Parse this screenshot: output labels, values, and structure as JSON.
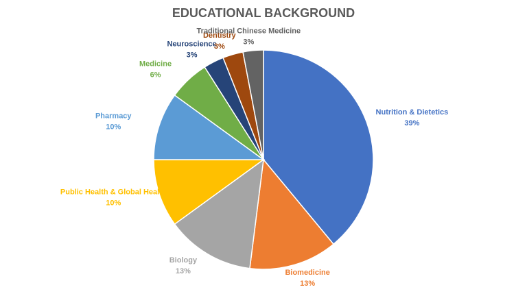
{
  "chart_data": {
    "type": "pie",
    "title": "EDUCATIONAL BACKGROUND",
    "categories": [
      "Nutrition & Dietetics",
      "Biomedicine",
      "Biology",
      "Public Health & Global Health",
      "Pharmacy",
      "Medicine",
      "Neuroscience",
      "Dentistry",
      "Traditional Chinese Medicine"
    ],
    "values": [
      39,
      13,
      13,
      10,
      10,
      6,
      3,
      3,
      3
    ],
    "value_labels": [
      "39%",
      "13%",
      "13%",
      "10%",
      "10%",
      "6%",
      "3%",
      "3%",
      "3%"
    ],
    "colors": [
      "#4472c4",
      "#ed7d31",
      "#a5a5a5",
      "#ffc000",
      "#5b9bd5",
      "#70ad47",
      "#264478",
      "#9e480e",
      "#636363"
    ]
  }
}
